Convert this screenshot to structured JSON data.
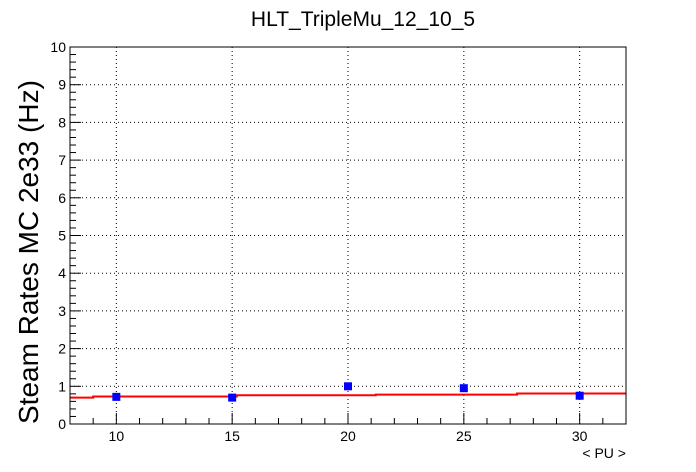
{
  "chart_data": {
    "type": "scatter",
    "title": "HLT_TripleMu_12_10_5",
    "xlabel": "< PU >",
    "ylabel": "Steam Rates MC 2e33 (Hz)",
    "xlim": [
      8,
      32
    ],
    "ylim": [
      0,
      10
    ],
    "grid": true,
    "xticks": [
      10,
      15,
      20,
      25,
      30
    ],
    "yticks": [
      0,
      1,
      2,
      3,
      4,
      5,
      6,
      7,
      8,
      9,
      10
    ],
    "series": [
      {
        "kind": "points",
        "color": "#0000ff",
        "marker": "square",
        "x": [
          10,
          15,
          20,
          25,
          30
        ],
        "y": [
          0.72,
          0.7,
          1.0,
          0.95,
          0.75
        ]
      },
      {
        "kind": "fit-line",
        "color": "#ff0000",
        "x": [
          8,
          9,
          9,
          15.2,
          15.2,
          21.2,
          21.2,
          27.3,
          27.3,
          32
        ],
        "y": [
          0.7,
          0.7,
          0.73,
          0.73,
          0.76,
          0.76,
          0.78,
          0.78,
          0.81,
          0.81
        ]
      }
    ]
  }
}
